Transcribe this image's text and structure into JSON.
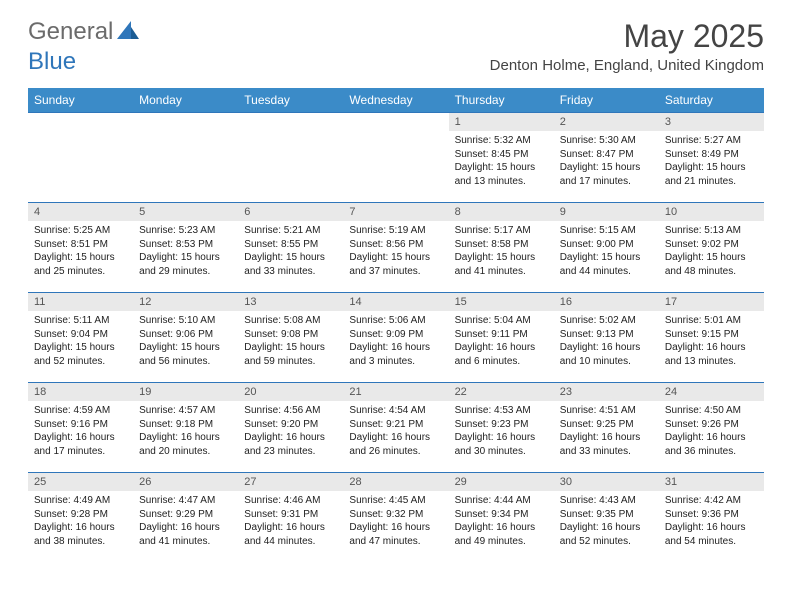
{
  "logo": {
    "general": "General",
    "blue": "Blue"
  },
  "title": "May 2025",
  "location": "Denton Holme, England, United Kingdom",
  "colors": {
    "header_bg": "#3b8bc8",
    "row_border": "#2f76ba",
    "daynum_bg": "#e9e9e9",
    "logo_gray": "#6b6b6b",
    "logo_blue": "#2f76ba"
  },
  "weekdays": [
    "Sunday",
    "Monday",
    "Tuesday",
    "Wednesday",
    "Thursday",
    "Friday",
    "Saturday"
  ],
  "weeks": [
    [
      {
        "n": "",
        "lines": []
      },
      {
        "n": "",
        "lines": []
      },
      {
        "n": "",
        "lines": []
      },
      {
        "n": "",
        "lines": []
      },
      {
        "n": "1",
        "lines": [
          "Sunrise: 5:32 AM",
          "Sunset: 8:45 PM",
          "Daylight: 15 hours",
          "and 13 minutes."
        ]
      },
      {
        "n": "2",
        "lines": [
          "Sunrise: 5:30 AM",
          "Sunset: 8:47 PM",
          "Daylight: 15 hours",
          "and 17 minutes."
        ]
      },
      {
        "n": "3",
        "lines": [
          "Sunrise: 5:27 AM",
          "Sunset: 8:49 PM",
          "Daylight: 15 hours",
          "and 21 minutes."
        ]
      }
    ],
    [
      {
        "n": "4",
        "lines": [
          "Sunrise: 5:25 AM",
          "Sunset: 8:51 PM",
          "Daylight: 15 hours",
          "and 25 minutes."
        ]
      },
      {
        "n": "5",
        "lines": [
          "Sunrise: 5:23 AM",
          "Sunset: 8:53 PM",
          "Daylight: 15 hours",
          "and 29 minutes."
        ]
      },
      {
        "n": "6",
        "lines": [
          "Sunrise: 5:21 AM",
          "Sunset: 8:55 PM",
          "Daylight: 15 hours",
          "and 33 minutes."
        ]
      },
      {
        "n": "7",
        "lines": [
          "Sunrise: 5:19 AM",
          "Sunset: 8:56 PM",
          "Daylight: 15 hours",
          "and 37 minutes."
        ]
      },
      {
        "n": "8",
        "lines": [
          "Sunrise: 5:17 AM",
          "Sunset: 8:58 PM",
          "Daylight: 15 hours",
          "and 41 minutes."
        ]
      },
      {
        "n": "9",
        "lines": [
          "Sunrise: 5:15 AM",
          "Sunset: 9:00 PM",
          "Daylight: 15 hours",
          "and 44 minutes."
        ]
      },
      {
        "n": "10",
        "lines": [
          "Sunrise: 5:13 AM",
          "Sunset: 9:02 PM",
          "Daylight: 15 hours",
          "and 48 minutes."
        ]
      }
    ],
    [
      {
        "n": "11",
        "lines": [
          "Sunrise: 5:11 AM",
          "Sunset: 9:04 PM",
          "Daylight: 15 hours",
          "and 52 minutes."
        ]
      },
      {
        "n": "12",
        "lines": [
          "Sunrise: 5:10 AM",
          "Sunset: 9:06 PM",
          "Daylight: 15 hours",
          "and 56 minutes."
        ]
      },
      {
        "n": "13",
        "lines": [
          "Sunrise: 5:08 AM",
          "Sunset: 9:08 PM",
          "Daylight: 15 hours",
          "and 59 minutes."
        ]
      },
      {
        "n": "14",
        "lines": [
          "Sunrise: 5:06 AM",
          "Sunset: 9:09 PM",
          "Daylight: 16 hours",
          "and 3 minutes."
        ]
      },
      {
        "n": "15",
        "lines": [
          "Sunrise: 5:04 AM",
          "Sunset: 9:11 PM",
          "Daylight: 16 hours",
          "and 6 minutes."
        ]
      },
      {
        "n": "16",
        "lines": [
          "Sunrise: 5:02 AM",
          "Sunset: 9:13 PM",
          "Daylight: 16 hours",
          "and 10 minutes."
        ]
      },
      {
        "n": "17",
        "lines": [
          "Sunrise: 5:01 AM",
          "Sunset: 9:15 PM",
          "Daylight: 16 hours",
          "and 13 minutes."
        ]
      }
    ],
    [
      {
        "n": "18",
        "lines": [
          "Sunrise: 4:59 AM",
          "Sunset: 9:16 PM",
          "Daylight: 16 hours",
          "and 17 minutes."
        ]
      },
      {
        "n": "19",
        "lines": [
          "Sunrise: 4:57 AM",
          "Sunset: 9:18 PM",
          "Daylight: 16 hours",
          "and 20 minutes."
        ]
      },
      {
        "n": "20",
        "lines": [
          "Sunrise: 4:56 AM",
          "Sunset: 9:20 PM",
          "Daylight: 16 hours",
          "and 23 minutes."
        ]
      },
      {
        "n": "21",
        "lines": [
          "Sunrise: 4:54 AM",
          "Sunset: 9:21 PM",
          "Daylight: 16 hours",
          "and 26 minutes."
        ]
      },
      {
        "n": "22",
        "lines": [
          "Sunrise: 4:53 AM",
          "Sunset: 9:23 PM",
          "Daylight: 16 hours",
          "and 30 minutes."
        ]
      },
      {
        "n": "23",
        "lines": [
          "Sunrise: 4:51 AM",
          "Sunset: 9:25 PM",
          "Daylight: 16 hours",
          "and 33 minutes."
        ]
      },
      {
        "n": "24",
        "lines": [
          "Sunrise: 4:50 AM",
          "Sunset: 9:26 PM",
          "Daylight: 16 hours",
          "and 36 minutes."
        ]
      }
    ],
    [
      {
        "n": "25",
        "lines": [
          "Sunrise: 4:49 AM",
          "Sunset: 9:28 PM",
          "Daylight: 16 hours",
          "and 38 minutes."
        ]
      },
      {
        "n": "26",
        "lines": [
          "Sunrise: 4:47 AM",
          "Sunset: 9:29 PM",
          "Daylight: 16 hours",
          "and 41 minutes."
        ]
      },
      {
        "n": "27",
        "lines": [
          "Sunrise: 4:46 AM",
          "Sunset: 9:31 PM",
          "Daylight: 16 hours",
          "and 44 minutes."
        ]
      },
      {
        "n": "28",
        "lines": [
          "Sunrise: 4:45 AM",
          "Sunset: 9:32 PM",
          "Daylight: 16 hours",
          "and 47 minutes."
        ]
      },
      {
        "n": "29",
        "lines": [
          "Sunrise: 4:44 AM",
          "Sunset: 9:34 PM",
          "Daylight: 16 hours",
          "and 49 minutes."
        ]
      },
      {
        "n": "30",
        "lines": [
          "Sunrise: 4:43 AM",
          "Sunset: 9:35 PM",
          "Daylight: 16 hours",
          "and 52 minutes."
        ]
      },
      {
        "n": "31",
        "lines": [
          "Sunrise: 4:42 AM",
          "Sunset: 9:36 PM",
          "Daylight: 16 hours",
          "and 54 minutes."
        ]
      }
    ]
  ]
}
